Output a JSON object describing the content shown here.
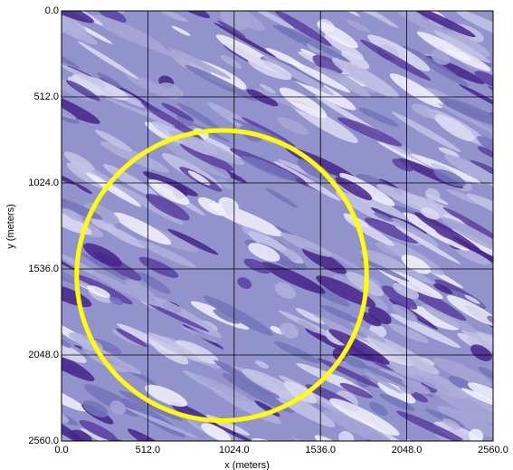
{
  "chart_data": {
    "type": "field-map",
    "x_label": "x (meters)",
    "y_label": "y (meters)",
    "xlim": [
      0,
      2560
    ],
    "ylim": [
      0,
      2560
    ],
    "y_inverted": true,
    "xticks": [
      {
        "value": 0,
        "label": "0.0"
      },
      {
        "value": 512,
        "label": "512.0"
      },
      {
        "value": 1024,
        "label": "1024.0"
      },
      {
        "value": 1536,
        "label": "1536.0"
      },
      {
        "value": 2048,
        "label": "2048.0"
      },
      {
        "value": 2560,
        "label": "2560.0"
      }
    ],
    "yticks": [
      {
        "value": 0,
        "label": "0.0"
      },
      {
        "value": 512,
        "label": "512.0"
      },
      {
        "value": 1024,
        "label": "1024.0"
      },
      {
        "value": 1536,
        "label": "1536.0"
      },
      {
        "value": 2048,
        "label": "2048.0"
      },
      {
        "value": 2560,
        "label": "2560.0"
      }
    ],
    "grid": true,
    "circle": {
      "cx": 950,
      "cy": 1575,
      "r": 860,
      "color": "#ffff00"
    }
  }
}
